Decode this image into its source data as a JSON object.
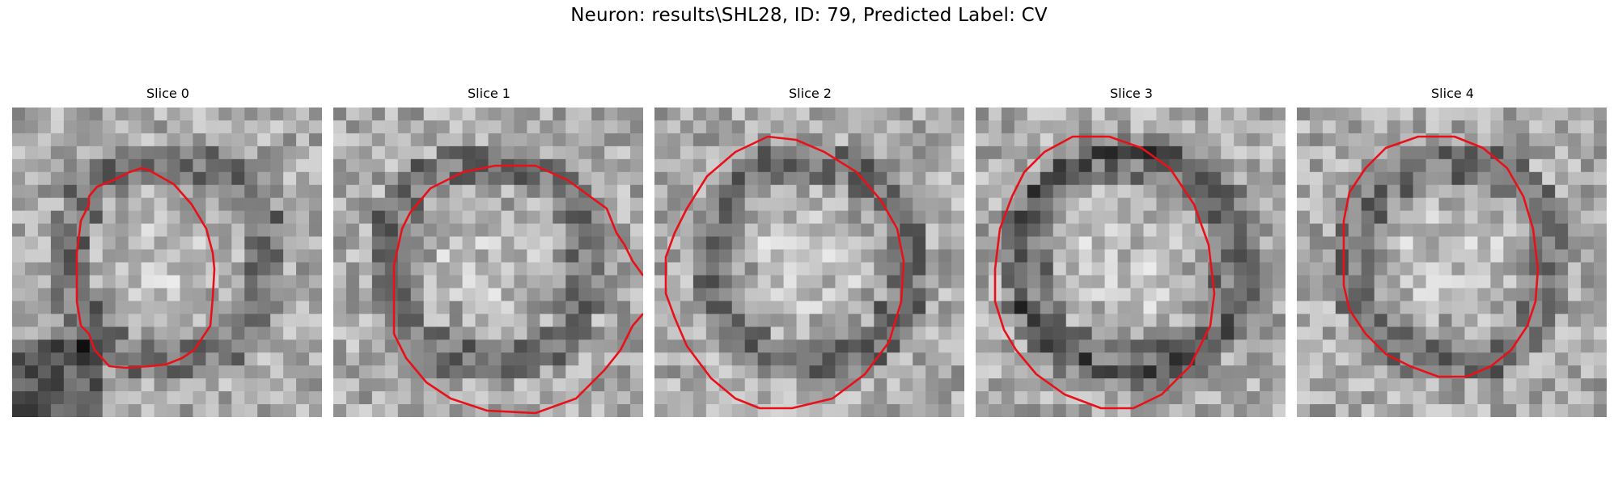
{
  "figure": {
    "title": "Neuron: results\\SHL28, ID: 79, Predicted Label: CV"
  },
  "panels": [
    {
      "title": "Slice 0"
    },
    {
      "title": "Slice 1"
    },
    {
      "title": "Slice 2"
    },
    {
      "title": "Slice 3"
    },
    {
      "title": "Slice 4"
    }
  ],
  "colors": {
    "contour": "#e8111a",
    "colormap": "grayscale"
  }
}
